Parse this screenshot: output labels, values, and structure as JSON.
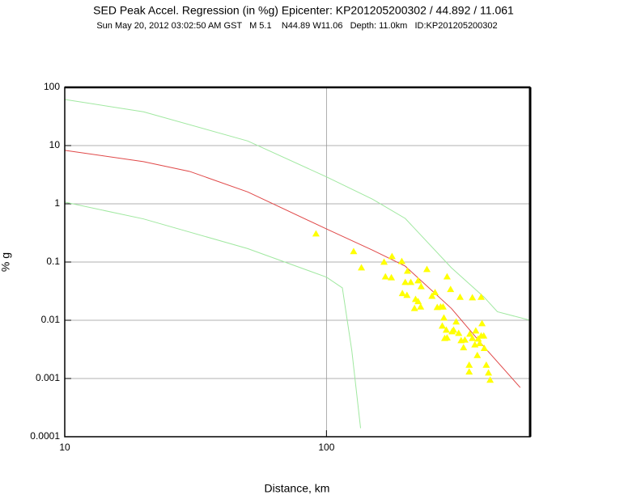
{
  "chart_data": {
    "type": "scatter",
    "title": "SED Peak Accel. Regression (in %g) Epicenter: KP201205200302 / 44.892 / 11.061",
    "subtitle": "Sun May 20, 2012 03:02:50 AM GST   M 5.1    N44.89 W11.06   Depth: 11.0km   ID:KP201205200302",
    "x_label": "Distance, km",
    "y_label": "% g",
    "xlog": true,
    "ylog": true,
    "grid": true,
    "xlim": [
      10,
      600
    ],
    "ylim": [
      0.0001,
      100
    ],
    "xticks": [
      10,
      100
    ],
    "yticks": [
      0.0001,
      0.001,
      0.01,
      0.1,
      1,
      10,
      100
    ],
    "series": [
      {
        "mode": "line",
        "color": "#a0e8a0",
        "x": [
          10,
          20,
          50,
          100,
          150,
          200,
          300,
          400,
          450,
          600
        ],
        "values": [
          62,
          38,
          12,
          2.9,
          1.2,
          0.56,
          0.08,
          0.025,
          0.014,
          0.01
        ]
      },
      {
        "mode": "line",
        "color": "#e04848",
        "x": [
          10,
          20,
          30,
          50,
          100,
          150,
          200,
          300,
          400,
          550
        ],
        "values": [
          8.3,
          5.3,
          3.6,
          1.6,
          0.37,
          0.16,
          0.085,
          0.016,
          0.0035,
          0.0007
        ]
      },
      {
        "mode": "line",
        "color": "#a0e8a0",
        "x": [
          10,
          20,
          50,
          100,
          115,
          125,
          135
        ],
        "values": [
          1.07,
          0.55,
          0.17,
          0.055,
          0.036,
          0.003,
          0.00014
        ]
      },
      {
        "mode": "markers",
        "color": "#ffff00",
        "x": [
          91.2,
          127,
          136,
          166,
          178,
          168,
          177,
          194,
          204,
          200,
          210,
          224,
          230,
          242,
          195,
          203,
          219,
          217,
          224,
          229,
          253,
          260,
          279,
          289,
          265,
          273,
          281,
          277,
          287,
          283,
          289,
          302,
          306,
          313,
          320,
          327,
          334,
          338,
          353,
          361,
          369,
          372,
          380,
          377,
          385,
          390,
          393,
          399,
          401,
          408,
          416,
          422,
          351,
          351,
          324,
          361,
          390,
          298
        ],
        "values": [
          0.306,
          0.152,
          0.08,
          0.1,
          0.125,
          0.056,
          0.054,
          0.103,
          0.07,
          0.045,
          0.045,
          0.048,
          0.038,
          0.075,
          0.029,
          0.027,
          0.023,
          0.016,
          0.021,
          0.017,
          0.026,
          0.03,
          0.017,
          0.056,
          0.0167,
          0.017,
          0.011,
          0.008,
          0.0068,
          0.0049,
          0.005,
          0.0064,
          0.0068,
          0.0094,
          0.006,
          0.0045,
          0.0034,
          0.0046,
          0.0058,
          0.0049,
          0.0038,
          0.0066,
          0.0048,
          0.0025,
          0.004,
          0.0054,
          0.0088,
          0.0054,
          0.0033,
          0.0017,
          0.00125,
          0.00094,
          0.0013,
          0.0017,
          0.025,
          0.0245,
          0.025,
          0.034
        ]
      }
    ]
  }
}
